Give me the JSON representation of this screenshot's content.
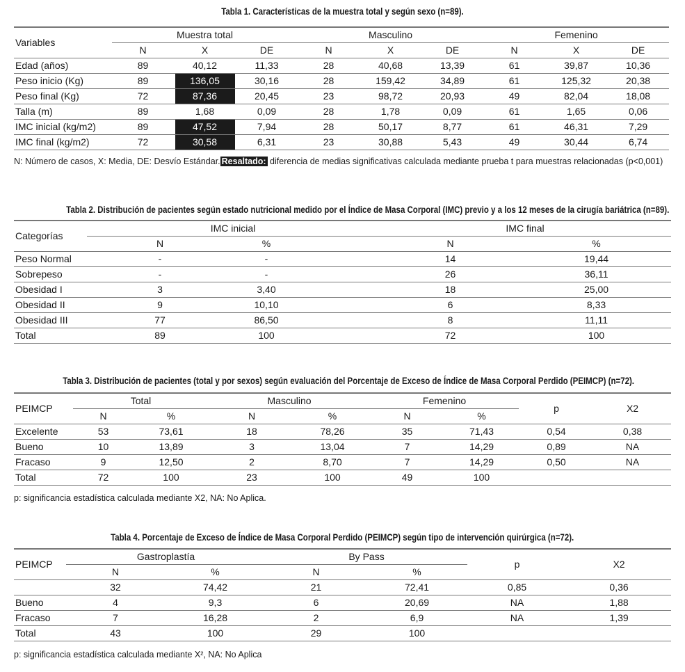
{
  "table1": {
    "title": "Tabla 1. Características de la muestra total y según sexo (n=89).",
    "row_header": "Variables",
    "groups": [
      "Muestra total",
      "Masculino",
      "Femenino"
    ],
    "subheaders": [
      "N",
      "X",
      "DE",
      "N",
      "X",
      "DE",
      "N",
      "X",
      "DE"
    ],
    "rows": [
      [
        "Edad (años)",
        "89",
        "40,12",
        "11,33",
        "28",
        "40,68",
        "13,39",
        "61",
        "39,87",
        "10,36"
      ],
      [
        "Peso inicio (Kg)",
        "89",
        "136,05",
        "30,16",
        "28",
        "159,42",
        "34,89",
        "61",
        "125,32",
        "20,38"
      ],
      [
        "Peso final (Kg)",
        "72",
        "87,36",
        "20,45",
        "23",
        "98,72",
        "20,93",
        "49",
        "82,04",
        "18,08"
      ],
      [
        "Talla (m)",
        "89",
        "1,68",
        "0,09",
        "28",
        "1,78",
        "0,09",
        "61",
        "1,65",
        "0,06"
      ],
      [
        "IMC inicial (kg/m2)",
        "89",
        "47,52",
        "7,94",
        "28",
        "50,17",
        "8,77",
        "61",
        "46,31",
        "7,29"
      ],
      [
        "IMC final (kg/m2)",
        "72",
        "30,58",
        "6,31",
        "23",
        "30,88",
        "5,43",
        "49",
        "30,44",
        "6,74"
      ]
    ],
    "highlighted_rows": [
      1,
      2,
      4,
      5
    ],
    "highlight_color": "#1b1b1b",
    "note_before": "N: Número de casos, X: Media, DE: Desvío Estándar.",
    "note_highlight": "Resaltado:",
    "note_after": " diferencia de medias significativas calculada mediante prueba t para muestras relacionadas (p<0,001)"
  },
  "table2": {
    "title": "Tabla 2. Distribución de pacientes según estado nutricional medido por el Índice de Masa Corporal (IMC) previo y a los 12 meses de la cirugía bariátrica (n=89).",
    "row_header": "Categorías",
    "groups": [
      "IMC inicial",
      "IMC final"
    ],
    "subheaders": [
      "N",
      "%",
      "N",
      "%"
    ],
    "rows": [
      [
        "Peso Normal",
        "-",
        "-",
        "14",
        "19,44"
      ],
      [
        "Sobrepeso",
        "-",
        "-",
        "26",
        "36,11"
      ],
      [
        "Obesidad I",
        "3",
        "3,40",
        "18",
        "25,00"
      ],
      [
        "Obesidad II",
        "9",
        "10,10",
        "6",
        "8,33"
      ],
      [
        "Obesidad III",
        "77",
        "86,50",
        "8",
        "11,11"
      ],
      [
        "Total",
        "89",
        "100",
        "72",
        "100"
      ]
    ]
  },
  "table3": {
    "title": "Tabla 3. Distribución de pacientes (total y por sexos) según evaluación del Porcentaje de Exceso de Índice de Masa Corporal Perdido (PEIMCP) (n=72).",
    "row_header": "PEIMCP",
    "groups": [
      "Total",
      "Masculino",
      "Femenino"
    ],
    "extra_headers": [
      "p",
      "X2"
    ],
    "subheaders": [
      "N",
      "%",
      "N",
      "%",
      "N",
      "%"
    ],
    "rows": [
      [
        "Excelente",
        "53",
        "73,61",
        "18",
        "78,26",
        "35",
        "71,43",
        "0,54",
        "0,38"
      ],
      [
        "Bueno",
        "10",
        "13,89",
        "3",
        "13,04",
        "7",
        "14,29",
        "0,89",
        "NA"
      ],
      [
        "Fracaso",
        "9",
        "12,50",
        "2",
        "8,70",
        "7",
        "14,29",
        "0,50",
        "NA"
      ],
      [
        "Total",
        "72",
        "100",
        "23",
        "100",
        "49",
        "100",
        "",
        ""
      ]
    ],
    "note": "p: significancia estadística calculada mediante X2, NA: No Aplica."
  },
  "table4": {
    "title": "Tabla 4. Porcentaje de Exceso de Índice de Masa Corporal Perdido (PEIMCP) según tipo de intervención quirúrgica (n=72).",
    "row_header": "PEIMCP",
    "groups": [
      "Gastroplastía",
      "By Pass"
    ],
    "extra_headers": [
      "p",
      "X2"
    ],
    "subheaders": [
      "N",
      "%",
      "N",
      "%"
    ],
    "rows": [
      [
        "",
        "32",
        "74,42",
        "21",
        "72,41",
        "0,85",
        "0,36"
      ],
      [
        "Bueno",
        "4",
        "9,3",
        "6",
        "20,69",
        "NA",
        "1,88"
      ],
      [
        "Fracaso",
        "7",
        "16,28",
        "2",
        "6,9",
        "NA",
        "1,39"
      ],
      [
        "Total",
        "43",
        "100",
        "29",
        "100",
        "",
        ""
      ]
    ],
    "note": "p: significancia estadística calculada mediante X², NA: No Aplica"
  }
}
